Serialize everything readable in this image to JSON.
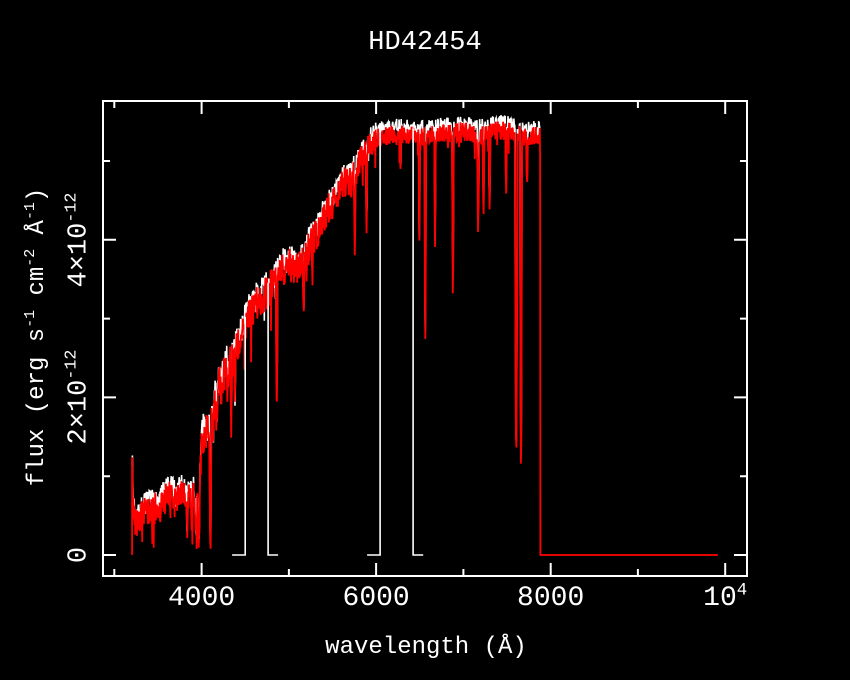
{
  "title": "HD42454",
  "colors": {
    "background": "#000000",
    "axis": "#ffffff",
    "spectrum_primary": "#ff0000",
    "spectrum_secondary": "#ffffff"
  },
  "chart_data": {
    "type": "line",
    "title": "HD42454",
    "xlabel": "wavelength (Å)",
    "ylabel": "flux (erg s^{-1} cm^{-2} Å^{-1})",
    "x_unit": "Angstrom",
    "flux_unit_scale": "1e-12 erg s-1 cm-2 A-1",
    "xlim": [
      2870,
      10250
    ],
    "ylim_1e12": [
      -0.27,
      5.76
    ],
    "grid": false,
    "legend": "none",
    "x_ticks_major": [
      {
        "value": 4000,
        "label": "4000"
      },
      {
        "value": 6000,
        "label": "6000"
      },
      {
        "value": 8000,
        "label": "8000"
      },
      {
        "value": 10000,
        "label": "10^{4}"
      }
    ],
    "x_ticks_minor": [
      3000,
      5000,
      7000,
      9000
    ],
    "y_ticks_major": [
      {
        "value": 0,
        "label": "0"
      },
      {
        "value": 2,
        "label": "2×10^{-12}"
      },
      {
        "value": 4,
        "label": "4×10^{-12}"
      }
    ],
    "y_ticks_minor": [
      1,
      3,
      5
    ],
    "series": [
      {
        "name": "observed-spectrum-red",
        "color": "#ff0000",
        "range": [
          3203,
          7882
        ],
        "start_zero": true,
        "zero_segment": [
          7882,
          9918
        ],
        "continuum": [
          [
            3203,
            1.2
          ],
          [
            3215,
            0.6
          ],
          [
            3240,
            0.45
          ],
          [
            3270,
            0.42
          ],
          [
            3300,
            0.48
          ],
          [
            3340,
            0.52
          ],
          [
            3380,
            0.55
          ],
          [
            3420,
            0.55
          ],
          [
            3460,
            0.58
          ],
          [
            3500,
            0.56
          ],
          [
            3540,
            0.62
          ],
          [
            3580,
            0.7
          ],
          [
            3620,
            0.73
          ],
          [
            3660,
            0.78
          ],
          [
            3700,
            0.65
          ],
          [
            3740,
            0.8
          ],
          [
            3770,
            0.75
          ],
          [
            3800,
            0.72
          ],
          [
            3830,
            0.65
          ],
          [
            3860,
            0.75
          ],
          [
            3900,
            0.78
          ],
          [
            3930,
            0.6
          ],
          [
            3970,
            0.55
          ],
          [
            4000,
            1.45
          ],
          [
            4040,
            1.55
          ],
          [
            4080,
            1.55
          ],
          [
            4120,
            1.75
          ],
          [
            4160,
            1.95
          ],
          [
            4200,
            2.15
          ],
          [
            4240,
            2.25
          ],
          [
            4280,
            2.35
          ],
          [
            4320,
            2.45
          ],
          [
            4360,
            2.55
          ],
          [
            4400,
            2.6
          ],
          [
            4440,
            2.7
          ],
          [
            4480,
            2.85
          ],
          [
            4520,
            3.0
          ],
          [
            4560,
            3.05
          ],
          [
            4600,
            3.12
          ],
          [
            4640,
            3.2
          ],
          [
            4680,
            3.25
          ],
          [
            4720,
            3.3
          ],
          [
            4760,
            3.35
          ],
          [
            4800,
            3.42
          ],
          [
            4840,
            3.45
          ],
          [
            4880,
            3.5
          ],
          [
            4920,
            3.6
          ],
          [
            4960,
            3.65
          ],
          [
            5000,
            3.68
          ],
          [
            5040,
            3.66
          ],
          [
            5080,
            3.62
          ],
          [
            5120,
            3.65
          ],
          [
            5160,
            3.7
          ],
          [
            5200,
            3.82
          ],
          [
            5240,
            3.92
          ],
          [
            5280,
            4.0
          ],
          [
            5320,
            4.05
          ],
          [
            5360,
            4.12
          ],
          [
            5400,
            4.28
          ],
          [
            5440,
            4.38
          ],
          [
            5480,
            4.42
          ],
          [
            5520,
            4.5
          ],
          [
            5560,
            4.6
          ],
          [
            5600,
            4.68
          ],
          [
            5640,
            4.72
          ],
          [
            5680,
            4.72
          ],
          [
            5720,
            4.76
          ],
          [
            5760,
            4.82
          ],
          [
            5800,
            4.95
          ],
          [
            5840,
            5.02
          ],
          [
            5880,
            5.1
          ],
          [
            5920,
            5.18
          ],
          [
            5960,
            5.22
          ],
          [
            6000,
            5.28
          ],
          [
            6100,
            5.32
          ],
          [
            6200,
            5.34
          ],
          [
            6300,
            5.33
          ],
          [
            6400,
            5.32
          ],
          [
            6500,
            5.3
          ],
          [
            6600,
            5.33
          ],
          [
            6700,
            5.34
          ],
          [
            6800,
            5.35
          ],
          [
            6900,
            5.36
          ],
          [
            7000,
            5.38
          ],
          [
            7100,
            5.35
          ],
          [
            7200,
            5.33
          ],
          [
            7300,
            5.36
          ],
          [
            7400,
            5.39
          ],
          [
            7500,
            5.38
          ],
          [
            7600,
            5.35
          ],
          [
            7700,
            5.3
          ],
          [
            7800,
            5.32
          ],
          [
            7882,
            5.3
          ]
        ],
        "absorption_lines": [
          [
            3835,
            0.3,
            10
          ],
          [
            3890,
            0.32,
            10
          ],
          [
            3935,
            0.2,
            10
          ],
          [
            3968,
            0.22,
            10
          ],
          [
            4101,
            0.25,
            12
          ],
          [
            4172,
            1.6,
            8
          ],
          [
            4226,
            1.75,
            8
          ],
          [
            4300,
            2.05,
            10
          ],
          [
            4340,
            2.0,
            10
          ],
          [
            4383,
            1.95,
            8
          ],
          [
            4861,
            1.95,
            10
          ],
          [
            5170,
            3.15,
            10
          ],
          [
            5270,
            3.6,
            8
          ],
          [
            5755,
            3.85,
            8
          ],
          [
            5890,
            4.15,
            9
          ],
          [
            6280,
            4.85,
            7
          ],
          [
            6495,
            4.0,
            8
          ],
          [
            6563,
            2.65,
            9
          ],
          [
            6675,
            4.0,
            7
          ],
          [
            6880,
            3.5,
            10
          ],
          [
            7170,
            4.3,
            12
          ],
          [
            7230,
            4.4,
            10
          ],
          [
            7300,
            4.45,
            10
          ],
          [
            7490,
            4.55,
            8
          ],
          [
            7605,
            1.3,
            14
          ],
          [
            7660,
            1.15,
            12
          ],
          [
            7730,
            4.7,
            8
          ]
        ],
        "noise_amplitude": [
          [
            3203,
            0.2
          ],
          [
            3900,
            0.2
          ],
          [
            4000,
            0.23
          ],
          [
            5800,
            0.2
          ],
          [
            6050,
            0.12
          ],
          [
            7880,
            0.12
          ]
        ],
        "spike_probability": 0.05,
        "max_flux": 5.55
      },
      {
        "name": "comparison-spectrum-white",
        "color": "#ffffff",
        "range": [
          3203,
          7878
        ],
        "start_zero": false,
        "offset": 0.1,
        "noise_scale": 0.85,
        "spike_probability": 0.02,
        "max_flux": 5.66,
        "zero_gap_features": [
          {
            "zero": [
              4350,
              4499
            ],
            "vertical": "end"
          },
          {
            "zero": [
              4762,
              4877
            ],
            "vertical": "start"
          },
          {
            "zero": [
              5897,
              6046
            ],
            "vertical": "end"
          },
          {
            "zero": [
              6424,
              6539
            ],
            "vertical": "start"
          }
        ]
      }
    ]
  }
}
